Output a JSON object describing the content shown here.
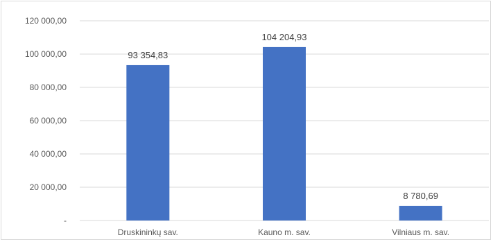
{
  "chart_data": {
    "type": "bar",
    "categories": [
      "Druskininkų sav.",
      "Kauno m. sav.",
      "Vilniaus m. sav."
    ],
    "values": [
      93354.83,
      104204.93,
      8780.69
    ],
    "data_labels": [
      "93 354,83",
      "104 204,93",
      "8 780,69"
    ],
    "y_ticks": [
      0,
      20000,
      40000,
      60000,
      80000,
      100000,
      120000
    ],
    "y_tick_labels": [
      "-",
      "20 000,00",
      "40 000,00",
      "60 000,00",
      "80 000,00",
      "100 000,00",
      "120 000,00"
    ],
    "ylim": [
      0,
      120000
    ],
    "grid": true,
    "legend": "none",
    "bar_color": "#4472c4",
    "grid_color": "#d9d9d9"
  }
}
